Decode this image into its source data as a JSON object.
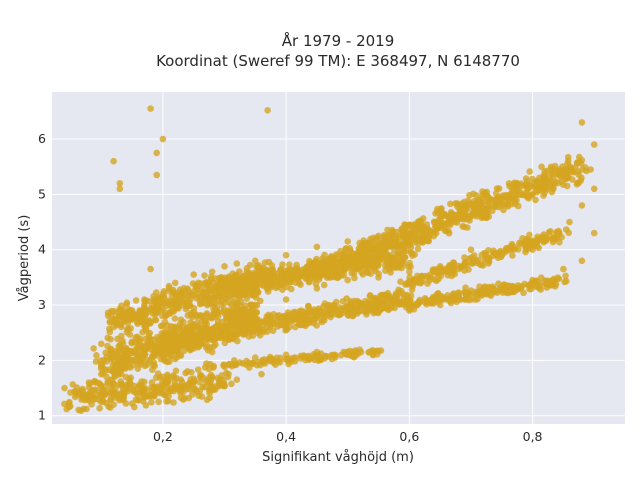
{
  "chart_data": {
    "type": "scatter",
    "title": "År 1979 - 2019",
    "subtitle": "Koordinat (Sweref 99 TM): E 368497, N 6148770",
    "xlabel": "Signifikant våghöjd (m)",
    "ylabel": "Vågperiod (s)",
    "xlim": [
      0.02,
      0.95
    ],
    "ylim": [
      0.85,
      6.85
    ],
    "x_ticks": [
      0.2,
      0.4,
      0.6,
      0.8
    ],
    "x_tick_labels": [
      "0,2",
      "0,4",
      "0,6",
      "0,8"
    ],
    "y_ticks": [
      1,
      2,
      3,
      4,
      5,
      6
    ],
    "y_tick_labels": [
      "1",
      "2",
      "3",
      "4",
      "5",
      "6"
    ],
    "grid": true,
    "legend": "none",
    "point_color": "#d4a520",
    "plot_background": "#e5e7f1",
    "series": [
      {
        "values": [
          [
            0.05,
            1.42
          ],
          [
            0.06,
            1.38
          ],
          [
            0.07,
            1.45
          ],
          [
            0.08,
            1.35
          ],
          [
            0.09,
            1.3
          ],
          [
            0.1,
            1.25
          ],
          [
            0.12,
            1.2
          ],
          [
            0.14,
            1.22
          ],
          [
            0.16,
            1.28
          ],
          [
            0.18,
            1.35
          ],
          [
            0.08,
            1.6
          ],
          [
            0.1,
            1.75
          ],
          [
            0.12,
            1.85
          ],
          [
            0.14,
            2.0
          ],
          [
            0.16,
            2.1
          ],
          [
            0.18,
            2.2
          ],
          [
            0.1,
            2.3
          ],
          [
            0.12,
            2.6
          ],
          [
            0.13,
            2.8
          ],
          [
            0.15,
            2.9
          ],
          [
            0.17,
            3.1
          ],
          [
            0.2,
            3.2
          ],
          [
            0.22,
            3.4
          ],
          [
            0.25,
            3.55
          ],
          [
            0.28,
            3.6
          ],
          [
            0.3,
            3.7
          ],
          [
            0.32,
            3.75
          ],
          [
            0.35,
            3.8
          ],
          [
            0.4,
            3.9
          ],
          [
            0.45,
            4.05
          ],
          [
            0.5,
            4.15
          ],
          [
            0.55,
            4.25
          ],
          [
            0.6,
            4.3
          ],
          [
            0.65,
            4.45
          ],
          [
            0.7,
            4.6
          ],
          [
            0.75,
            4.8
          ],
          [
            0.8,
            5.0
          ],
          [
            0.85,
            5.4
          ],
          [
            0.9,
            5.9
          ],
          [
            0.88,
            6.3
          ],
          [
            0.12,
            5.6
          ],
          [
            0.13,
            5.2
          ],
          [
            0.13,
            5.1
          ],
          [
            0.18,
            6.55
          ],
          [
            0.2,
            6.0
          ],
          [
            0.19,
            5.75
          ],
          [
            0.19,
            5.35
          ],
          [
            0.37,
            6.52
          ],
          [
            0.17,
            3.0
          ],
          [
            0.18,
            3.65
          ],
          [
            0.28,
            2.15
          ],
          [
            0.35,
            2.05
          ],
          [
            0.4,
            2.1
          ],
          [
            0.45,
            2.15
          ],
          [
            0.5,
            2.15
          ],
          [
            0.54,
            2.18
          ],
          [
            0.6,
            2.9
          ],
          [
            0.65,
            3.0
          ],
          [
            0.7,
            3.1
          ],
          [
            0.75,
            3.3
          ],
          [
            0.8,
            3.45
          ],
          [
            0.85,
            3.65
          ],
          [
            0.88,
            3.8
          ],
          [
            0.9,
            4.3
          ],
          [
            0.86,
            4.5
          ],
          [
            0.88,
            4.8
          ],
          [
            0.9,
            5.1
          ],
          [
            0.7,
            4.0
          ],
          [
            0.75,
            3.9
          ],
          [
            0.8,
            4.0
          ],
          [
            0.82,
            4.2
          ],
          [
            0.84,
            4.3
          ],
          [
            0.65,
            3.7
          ],
          [
            0.6,
            3.6
          ],
          [
            0.55,
            3.5
          ],
          [
            0.5,
            3.45
          ],
          [
            0.45,
            3.3
          ],
          [
            0.4,
            3.1
          ],
          [
            0.35,
            3.0
          ],
          [
            0.3,
            2.85
          ],
          [
            0.25,
            2.6
          ],
          [
            0.22,
            2.4
          ],
          [
            0.2,
            2.35
          ],
          [
            0.24,
            1.8
          ],
          [
            0.28,
            1.7
          ],
          [
            0.32,
            1.65
          ],
          [
            0.36,
            1.75
          ],
          [
            0.3,
            1.55
          ],
          [
            0.26,
            1.45
          ],
          [
            0.22,
            1.5
          ]
        ]
      }
    ],
    "clusters": [
      {
        "x_from": 0.05,
        "y_from": 1.32,
        "x_to": 0.3,
        "y_to": 1.6,
        "spread": 0.16,
        "count": 280
      },
      {
        "x_from": 0.1,
        "y_from": 1.9,
        "x_to": 0.35,
        "y_to": 2.9,
        "spread": 0.22,
        "count": 520
      },
      {
        "x_from": 0.12,
        "y_from": 2.7,
        "x_to": 0.38,
        "y_to": 3.6,
        "spread": 0.15,
        "count": 420
      },
      {
        "x_from": 0.2,
        "y_from": 2.3,
        "x_to": 0.6,
        "y_to": 3.15,
        "spread": 0.1,
        "count": 520
      },
      {
        "x_from": 0.3,
        "y_from": 3.3,
        "x_to": 0.6,
        "y_to": 3.9,
        "spread": 0.13,
        "count": 420
      },
      {
        "x_from": 0.45,
        "y_from": 3.6,
        "x_to": 0.88,
        "y_to": 5.5,
        "spread": 0.14,
        "count": 700
      },
      {
        "x_from": 0.55,
        "y_from": 2.95,
        "x_to": 0.85,
        "y_to": 3.45,
        "spread": 0.06,
        "count": 220
      },
      {
        "x_from": 0.27,
        "y_from": 1.88,
        "x_to": 0.55,
        "y_to": 2.15,
        "spread": 0.04,
        "count": 120
      },
      {
        "x_from": 0.6,
        "y_from": 3.4,
        "x_to": 0.85,
        "y_to": 4.3,
        "spread": 0.07,
        "count": 200
      }
    ]
  }
}
